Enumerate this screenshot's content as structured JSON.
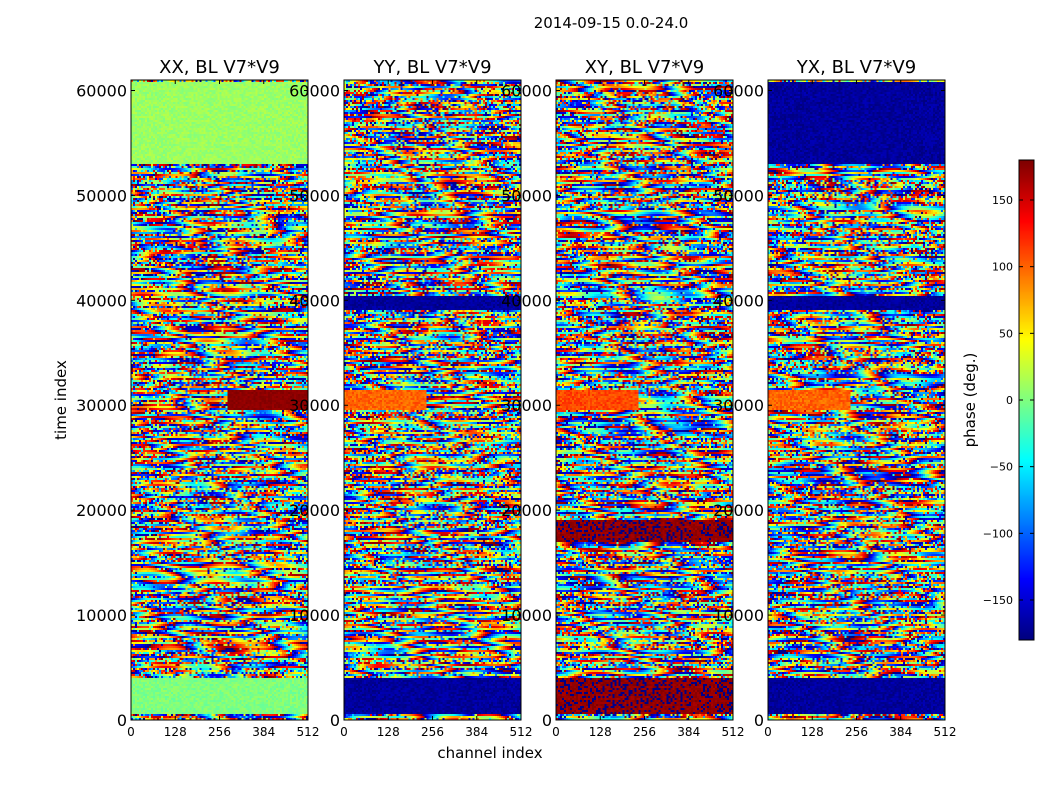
{
  "figure": {
    "suptitle": "2014-09-15 0.0-24.0"
  },
  "chart_data": {
    "type": "heatmap",
    "title": "2014-09-15 0.0-24.0",
    "xlabel": "channel index",
    "ylabel": "time index",
    "xlim": [
      0,
      512
    ],
    "ylim": [
      0,
      61000
    ],
    "x_ticks": [
      0,
      128,
      256,
      384,
      512
    ],
    "y_ticks": [
      0,
      10000,
      20000,
      30000,
      40000,
      50000,
      60000
    ],
    "panels": [
      {
        "title": "XX, BL V7*V9",
        "base_phase": 0,
        "bands": [
          {
            "y": [
              500,
              4000
            ],
            "phase": 0
          },
          {
            "y": [
              29500,
              31500
            ],
            "right_phase": 175
          },
          {
            "y": [
              53000,
              60800
            ],
            "phase": 10
          }
        ]
      },
      {
        "title": "YY, BL V7*V9",
        "base_phase": -170,
        "bands": [
          {
            "y": [
              500,
              4000
            ],
            "phase": -170
          },
          {
            "y": [
              39000,
              40500
            ],
            "phase": -170
          },
          {
            "y": [
              29500,
              31500
            ],
            "left_phase": 100
          }
        ]
      },
      {
        "title": "XY, BL V7*V9",
        "base_phase": 175,
        "bands": [
          {
            "y": [
              500,
              4000
            ],
            "phase": 175
          },
          {
            "y": [
              17000,
              19000
            ],
            "phase": 175
          },
          {
            "y": [
              29500,
              31500
            ],
            "left_phase": 110
          }
        ]
      },
      {
        "title": "YX, BL V7*V9",
        "base_phase": -170,
        "bands": [
          {
            "y": [
              500,
              4000
            ],
            "phase": -170
          },
          {
            "y": [
              39000,
              40500
            ],
            "phase": -170
          },
          {
            "y": [
              29500,
              31500
            ],
            "left_phase": 100
          },
          {
            "y": [
              53000,
              60800
            ],
            "phase": -170
          }
        ]
      }
    ],
    "colorbar": {
      "label": "phase (deg.)",
      "range": [
        -180,
        180
      ],
      "ticks": [
        150,
        100,
        50,
        0,
        -50,
        -100,
        -150
      ],
      "tick_labels": [
        "150",
        "100",
        "50",
        "0",
        "−50",
        "−100",
        "−150"
      ],
      "colormap": "jet"
    }
  }
}
